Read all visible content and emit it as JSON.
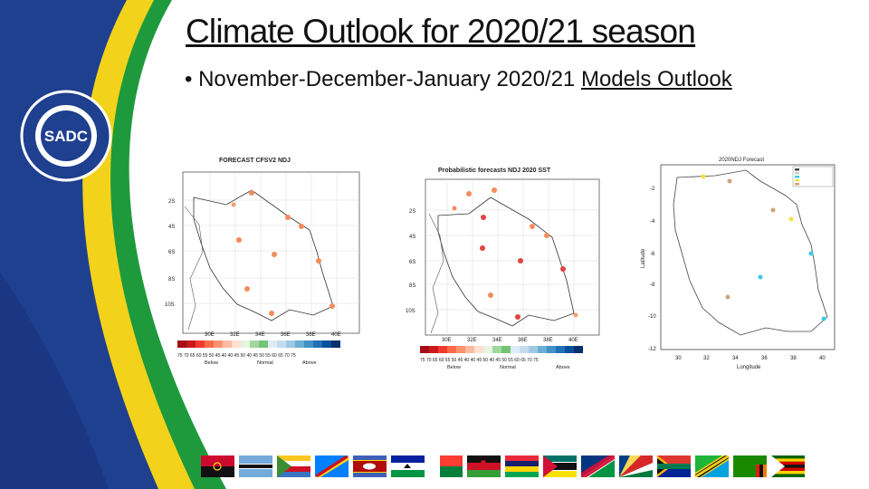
{
  "slide": {
    "title": "Climate Outlook for 2020/21 season",
    "subtitle_prefix": "• November-December-January 2020/21 ",
    "subtitle_link": "Models Outlook"
  },
  "logo": {
    "monogram": "SADC",
    "ring_text": "SOUTHERN AFRICAN DEVELOPMENT COMMUNITY • TOWARDS A COMMON FUTURE •"
  },
  "colors": {
    "green": "#1e9a3c",
    "yellow": "#f3d21b",
    "navy": "#1f3f8f",
    "below": "#d83a3a",
    "above": "#2a6fe0"
  },
  "map1": {
    "title": "FORECAST CFSV2 NDJ",
    "lat_labels": [
      "2S",
      "4S",
      "6S",
      "8S",
      "10S"
    ],
    "lon_labels": [
      "30E",
      "32E",
      "34E",
      "36E",
      "38E",
      "40E"
    ],
    "legend_numbers": "75 70 65 60 55 50 45 40    40 45 50    40 45 50 55 60 65 70 75",
    "legend_below": "Below",
    "legend_normal": "Normal",
    "legend_above": "Above"
  },
  "map2": {
    "title": "Probabilistic forecasts NDJ 2020 SST",
    "lat_labels": [
      "2S",
      "4S",
      "6S",
      "8S",
      "10S"
    ],
    "lon_labels": [
      "30E",
      "32E",
      "34E",
      "36E",
      "38E",
      "40E"
    ],
    "legend_numbers": "75 70 65 60 55 50 45 40    40 45 50    40 45 50 55 60 65 70 75",
    "legend_below": "Below",
    "legend_normal": "Normal",
    "legend_above": "Above"
  },
  "map3": {
    "title": "2020NDJ Forecast",
    "ylabel": "Latitude",
    "xlabel": "Longitude",
    "y_ticks": [
      "-2",
      "-4",
      "-6",
      "-8",
      "-10",
      "-12"
    ],
    "x_ticks": [
      "30",
      "32",
      "34",
      "36",
      "38",
      "40"
    ]
  },
  "flags_count": 16
}
